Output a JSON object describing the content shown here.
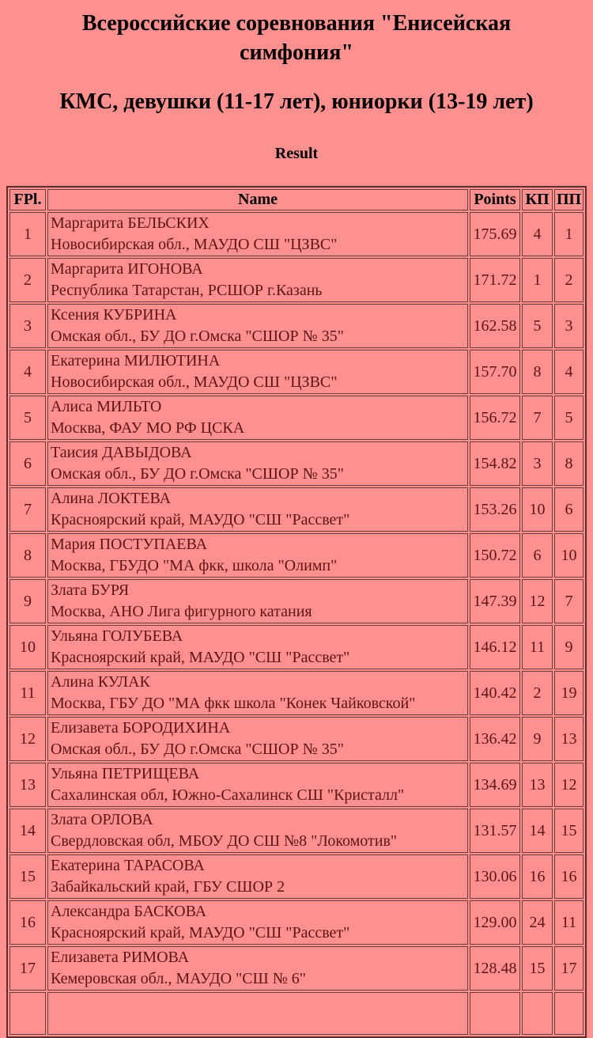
{
  "page": {
    "title": "Всероссийские соревнования \"Енисейская симфония\"",
    "category": "КМС, девушки (11-17 лет), юниорки (13-19 лет)",
    "section_heading": "Result"
  },
  "colors": {
    "background": "#ff9090",
    "heading_text": "#000000",
    "table_text": "#5e1414",
    "cell_border": "#6e3b3b",
    "table_border": "#5f2d2d"
  },
  "table": {
    "columns": [
      "FPl.",
      "Name",
      "Points",
      "КП",
      "ПП"
    ],
    "rows": [
      {
        "fpl": "1",
        "name": "Маргарита БЕЛЬСКИХ",
        "club": "Новосибирская обл., МАУДО СШ \"ЦЗВС\"",
        "points": "175.69",
        "kp": "4",
        "pp": "1"
      },
      {
        "fpl": "2",
        "name": "Маргарита ИГОНОВА",
        "club": "Республика Татарстан, РСШОР г.Казань",
        "points": "171.72",
        "kp": "1",
        "pp": "2"
      },
      {
        "fpl": "3",
        "name": "Ксения КУБРИНА",
        "club": "Омская обл., БУ ДО г.Омска \"СШОР № 35\"",
        "points": "162.58",
        "kp": "5",
        "pp": "3"
      },
      {
        "fpl": "4",
        "name": "Екатерина МИЛЮТИНА",
        "club": "Новосибирская обл., МАУДО СШ \"ЦЗВС\"",
        "points": "157.70",
        "kp": "8",
        "pp": "4"
      },
      {
        "fpl": "5",
        "name": "Алиса МИЛЬТО",
        "club": "Москва, ФАУ МО РФ ЦСКА",
        "points": "156.72",
        "kp": "7",
        "pp": "5"
      },
      {
        "fpl": "6",
        "name": "Таисия ДАВЫДОВА",
        "club": "Омская обл., БУ ДО г.Омска \"СШОР № 35\"",
        "points": "154.82",
        "kp": "3",
        "pp": "8"
      },
      {
        "fpl": "7",
        "name": "Алина ЛОКТЕВА",
        "club": "Красноярский край, МАУДО \"СШ \"Рассвет\"",
        "points": "153.26",
        "kp": "10",
        "pp": "6"
      },
      {
        "fpl": "8",
        "name": "Мария ПОСТУПАЕВА",
        "club": "Москва, ГБУДО \"МА фкк, школа \"Олимп\"",
        "points": "150.72",
        "kp": "6",
        "pp": "10"
      },
      {
        "fpl": "9",
        "name": "Злата БУРЯ",
        "club": "Москва, АНО Лига фигурного катания",
        "points": "147.39",
        "kp": "12",
        "pp": "7"
      },
      {
        "fpl": "10",
        "name": "Ульяна ГОЛУБЕВА",
        "club": "Красноярский край, МАУДО \"СШ \"Рассвет\"",
        "points": "146.12",
        "kp": "11",
        "pp": "9"
      },
      {
        "fpl": "11",
        "name": "Алина КУЛАК",
        "club": "Москва, ГБУ ДО \"МА фкк школа \"Конек Чайковской\"",
        "points": "140.42",
        "kp": "2",
        "pp": "19"
      },
      {
        "fpl": "12",
        "name": "Елизавета БОРОДИХИНА",
        "club": "Омская обл., БУ ДО г.Омска \"СШОР № 35\"",
        "points": "136.42",
        "kp": "9",
        "pp": "13"
      },
      {
        "fpl": "13",
        "name": "Ульяна ПЕТРИЩЕВА",
        "club": "Сахалинская обл, Южно-Сахалинск СШ \"Кристалл\"",
        "points": "134.69",
        "kp": "13",
        "pp": "12"
      },
      {
        "fpl": "14",
        "name": "Злата ОРЛОВА",
        "club": "Свердловская обл, МБОУ ДО СШ №8 \"Локомотив\"",
        "points": "131.57",
        "kp": "14",
        "pp": "15"
      },
      {
        "fpl": "15",
        "name": "Екатерина ТАРАСОВА",
        "club": "Забайкальский край, ГБУ СШОР 2",
        "points": "130.06",
        "kp": "16",
        "pp": "16"
      },
      {
        "fpl": "16",
        "name": "Александра БАСКОВА",
        "club": "Красноярский край, МАУДО \"СШ \"Рассвет\"",
        "points": "129.00",
        "kp": "24",
        "pp": "11"
      },
      {
        "fpl": "17",
        "name": "Елизавета РИМОВА",
        "club": "Кемеровская обл., МАУДО \"СШ № 6\"",
        "points": "128.48",
        "kp": "15",
        "pp": "17"
      },
      {
        "fpl": "",
        "name": "",
        "club": "",
        "points": "",
        "kp": "",
        "pp": ""
      }
    ]
  }
}
